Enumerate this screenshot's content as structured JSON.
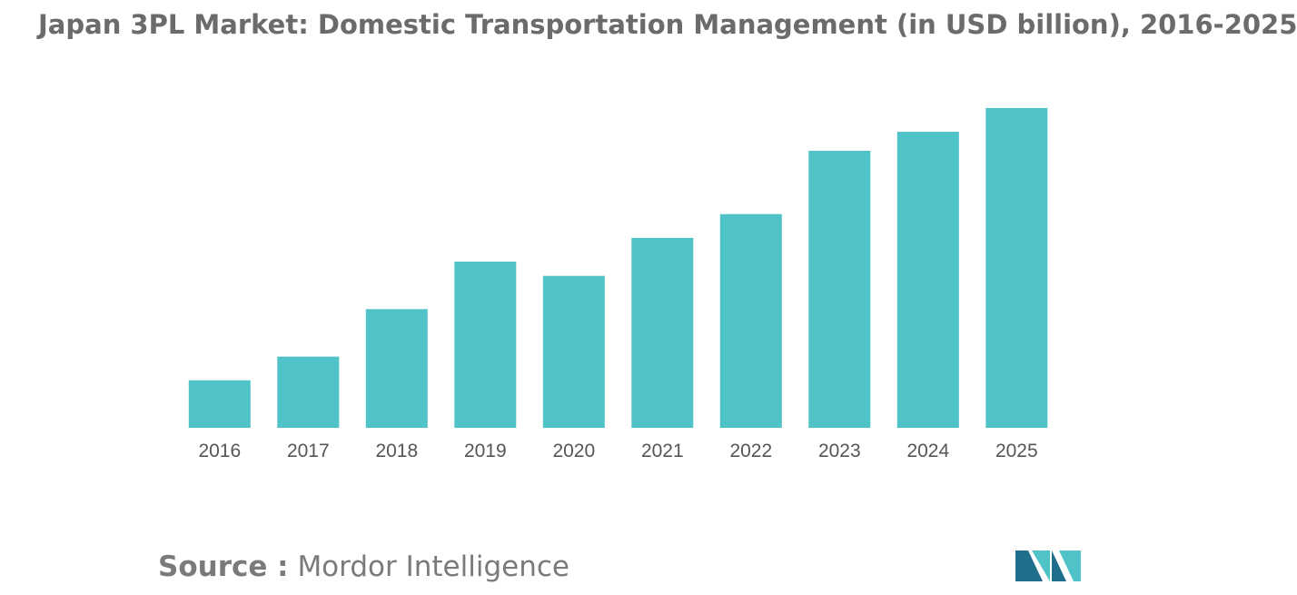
{
  "title": "Japan 3PL Market: Domestic Transportation Management (in USD billion), 2016-2025",
  "source": {
    "label": "Source :",
    "name": "Mordor Intelligence"
  },
  "colors": {
    "bar": "#50c3c9",
    "title": "#6b6b6b",
    "tick": "#555555",
    "logo_dark": "#1f6e8c",
    "logo_light": "#50c3c9"
  },
  "chart_data": {
    "type": "bar",
    "title": "Japan 3PL Market: Domestic Transportation Management (in USD billion), 2016-2025",
    "xlabel": "",
    "ylabel": "",
    "categories": [
      "2016",
      "2017",
      "2018",
      "2019",
      "2020",
      "2021",
      "2022",
      "2023",
      "2024",
      "2025"
    ],
    "values": [
      1.5,
      2.25,
      3.75,
      5.25,
      4.8,
      6.0,
      6.75,
      8.75,
      9.35,
      10.1
    ],
    "ylim": [
      0,
      10.5
    ],
    "grid": false,
    "legend": "none"
  }
}
